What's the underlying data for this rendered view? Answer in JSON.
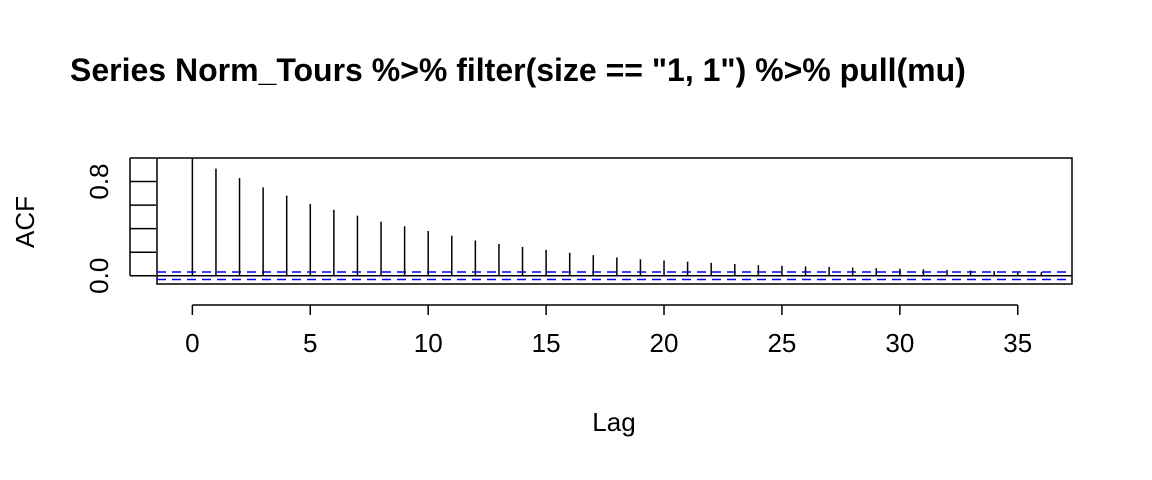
{
  "chart_data": {
    "type": "bar",
    "title": "Series  Norm_Tours %>% filter(size == \"1, 1\") %>% pull(mu)",
    "xlabel": "Lag",
    "ylabel": "ACF",
    "x": [
      0,
      1,
      2,
      3,
      4,
      5,
      6,
      7,
      8,
      9,
      10,
      11,
      12,
      13,
      14,
      15,
      16,
      17,
      18,
      19,
      20,
      21,
      22,
      23,
      24,
      25,
      26,
      27,
      28,
      29,
      30,
      31,
      32,
      33,
      34,
      35,
      36
    ],
    "values": [
      1.0,
      0.91,
      0.83,
      0.75,
      0.68,
      0.61,
      0.56,
      0.51,
      0.46,
      0.42,
      0.38,
      0.34,
      0.3,
      0.27,
      0.245,
      0.22,
      0.195,
      0.175,
      0.155,
      0.14,
      0.13,
      0.12,
      0.11,
      0.1,
      0.09,
      0.085,
      0.08,
      0.075,
      0.07,
      0.065,
      0.06,
      0.055,
      0.05,
      0.045,
      0.04,
      0.035,
      0.03
    ],
    "xlim": [
      -1.5,
      37.3
    ],
    "ylim": [
      -0.07,
      1.0
    ],
    "x_ticks": [
      0,
      5,
      10,
      15,
      20,
      25,
      30,
      35
    ],
    "x_tick_labels": [
      "0",
      "5",
      "10",
      "15",
      "20",
      "25",
      "30",
      "35"
    ],
    "y_ticks": [
      0,
      0.2,
      0.4,
      0.6,
      0.8,
      1.0
    ],
    "y_tick_labels": [
      "0.0",
      "0.8"
    ],
    "y_labeled_ticks": [
      0.0,
      0.8
    ],
    "confidence_bound": 0.032,
    "zero_line": true,
    "colors": {
      "bars": "#000000",
      "confidence": "#0000ff",
      "axis": "#000000"
    }
  }
}
